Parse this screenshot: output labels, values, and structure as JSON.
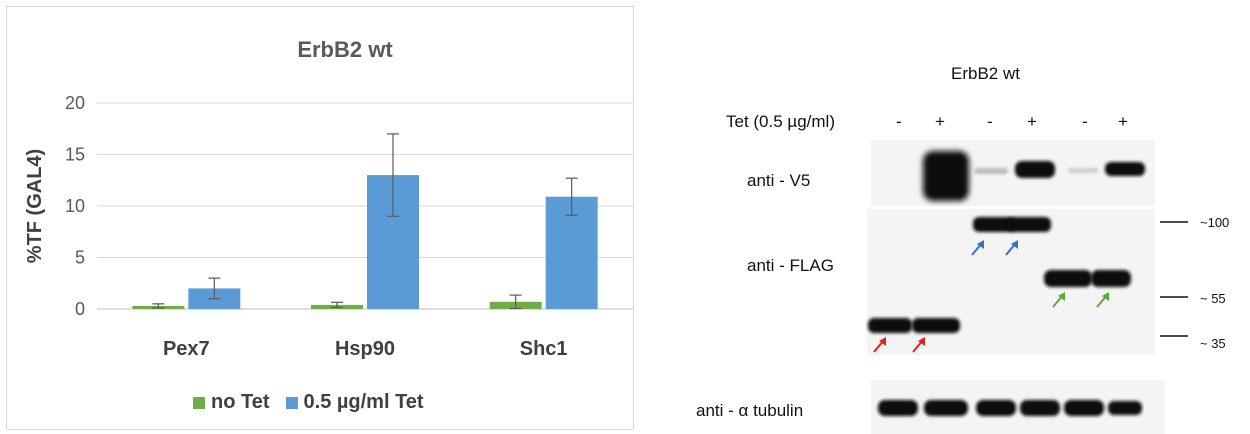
{
  "chart_data": {
    "type": "bar",
    "title": "ErbB2 wt",
    "ylabel": "%TF (GAL4)",
    "xlabel": "",
    "categories": [
      "Pex7",
      "Hsp90",
      "Shc1"
    ],
    "ylim": [
      0,
      20
    ],
    "yticks": [
      0,
      5,
      10,
      15,
      20
    ],
    "grid": true,
    "legend_position": "bottom",
    "series": [
      {
        "name": "no Tet",
        "color": "#70ad47",
        "values": [
          0.3,
          0.4,
          0.7
        ],
        "errors": [
          0.2,
          0.25,
          0.65
        ]
      },
      {
        "name": "0.5 µg/ml Tet",
        "color": "#5b9bd5",
        "values": [
          2.0,
          13.0,
          10.9
        ],
        "errors": [
          1.0,
          4.0,
          1.8
        ]
      }
    ]
  },
  "blot": {
    "title": "ErbB2 wt",
    "tet_label": "Tet (0.5 µg/ml)",
    "lane_signs": [
      "-",
      "+",
      "-",
      "+",
      "-",
      "+"
    ],
    "rows": [
      {
        "label": "anti - V5"
      },
      {
        "label": "anti - FLAG"
      },
      {
        "label": "anti - α tubulin"
      }
    ],
    "markers": [
      "~100",
      "~ 55",
      "~ 35"
    ],
    "arrow_colors": {
      "red": "#e02020",
      "blue": "#3a6fc4",
      "green": "#5aaa3c"
    }
  }
}
